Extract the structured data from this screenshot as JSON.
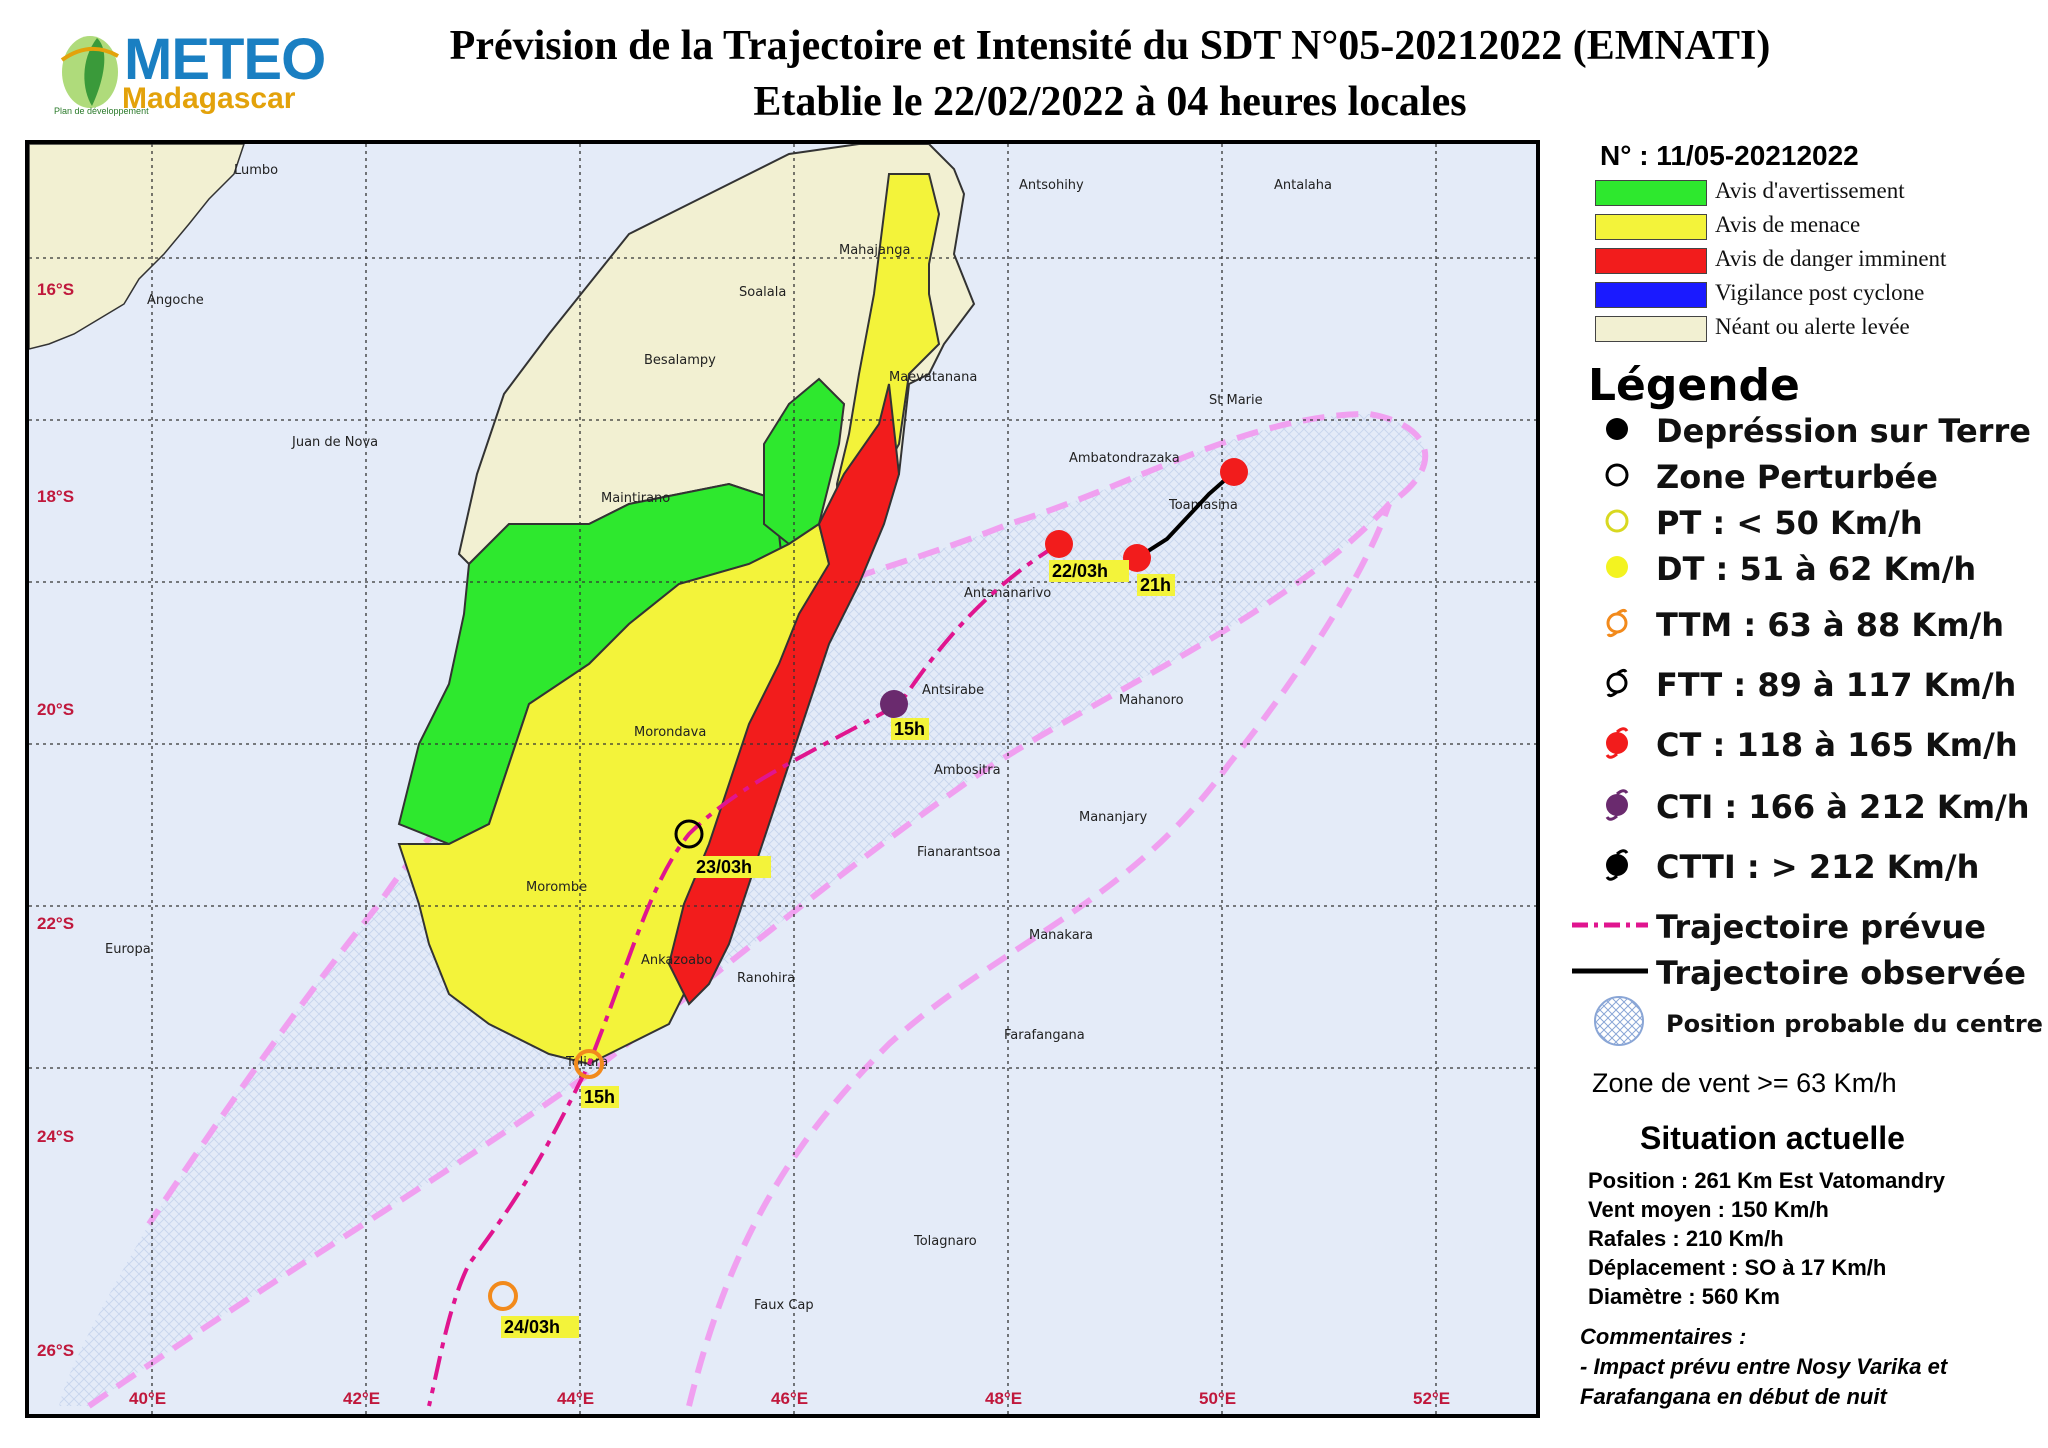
{
  "logo": {
    "line1": "METEO",
    "line2": "Madagascar",
    "small": "Plan de développement"
  },
  "title": {
    "line1": "Prévision de la Trajectoire et Intensité du SDT N°05-20212022 (EMNATI)",
    "line2": "Etablie le 22/02/2022 à 04 heures locales"
  },
  "map": {
    "lat_labels": [
      "16°S",
      "18°S",
      "20°S",
      "22°S",
      "24°S",
      "26°S"
    ],
    "lon_labels": [
      "40°E",
      "42°E",
      "44°E",
      "46°E",
      "48°E",
      "50°E",
      "52°E"
    ],
    "places": [
      "Lumbo",
      "Angoche",
      "Juan de Nova",
      "Europa",
      "Mahajanga",
      "Soalala",
      "Besalampy",
      "Maevatanana",
      "Maintirano",
      "Antsohihy",
      "Antalaha",
      "St Marie",
      "Ambatondrazaka",
      "Toamasina",
      "Antananarivo",
      "Antsirabe",
      "Mahanoro",
      "Morondava",
      "Ambositra",
      "Mananjary",
      "Fianarantsoa",
      "Morombe",
      "Manakara",
      "Ankazoabo",
      "Ranohira",
      "Farafangana",
      "Toliara",
      "Tolagnaro",
      "Faux Cap"
    ],
    "track_labels": [
      "21h",
      "22/03h",
      "15h",
      "23/03h",
      "15h",
      "24/03h"
    ],
    "colors": {
      "green": "#2ee82e",
      "yellow": "#f3f33a",
      "red": "#f21c1c",
      "blue": "#1a1aff",
      "cream": "#f2f0d2",
      "ocean": "#e4ebf8",
      "forecast_track": "#e0158f",
      "cone": "#f0a0f0",
      "lat_label": "#c0183c"
    }
  },
  "legend": {
    "number": "N° : 11/05-20212022",
    "alerts": [
      {
        "label": "Avis d'avertissement",
        "color": "#2ee82e"
      },
      {
        "label": "Avis de menace",
        "color": "#f3f33a"
      },
      {
        "label": "Avis de danger imminent",
        "color": "#f21c1c"
      },
      {
        "label": "Vigilance post cyclone",
        "color": "#1a1aff"
      },
      {
        "label": "Néant ou alerte levée",
        "color": "#f2f0d2"
      }
    ],
    "title": "Légende",
    "items": [
      {
        "icon": "black-dot-icon",
        "label": "Depréssion sur Terre"
      },
      {
        "icon": "open-circle-icon",
        "label": "Zone Perturbée"
      },
      {
        "icon": "yellow-ring-icon",
        "label": "PT : < 50 Km/h"
      },
      {
        "icon": "yellow-dot-icon",
        "label": "DT : 51 à 62 Km/h"
      },
      {
        "icon": "orange-cyclone-icon",
        "label": "TTM : 63 à 88 Km/h"
      },
      {
        "icon": "black-cyclone-outline-icon",
        "label": "FTT : 89 à 117 Km/h"
      },
      {
        "icon": "red-cyclone-icon",
        "label": "CT : 118 à 165 Km/h"
      },
      {
        "icon": "purple-cyclone-icon",
        "label": "CTI : 166 à 212 Km/h"
      },
      {
        "icon": "black-cyclone-icon",
        "label": "CTTI : > 212 Km/h"
      },
      {
        "icon": "dashed-magenta-line-icon",
        "label": "Trajectoire prévue"
      },
      {
        "icon": "solid-black-line-icon",
        "label": "Trajectoire observée"
      },
      {
        "icon": "hatched-circle-icon",
        "label": "Position probable du centre"
      }
    ],
    "zone": "Zone de vent >= 63 Km/h",
    "situation_title": "Situation actuelle",
    "situation": [
      "Position : 261 Km Est Vatomandry",
      "Vent moyen : 150 Km/h",
      "Rafales : 210 Km/h",
      "Déplacement : SO à 17 Km/h",
      "Diamètre : 560 Km"
    ],
    "comments_title": "Commentaires :",
    "comments": [
      "- Impact prévu entre Nosy Varika et",
      "Farafangana en début de nuit"
    ]
  }
}
